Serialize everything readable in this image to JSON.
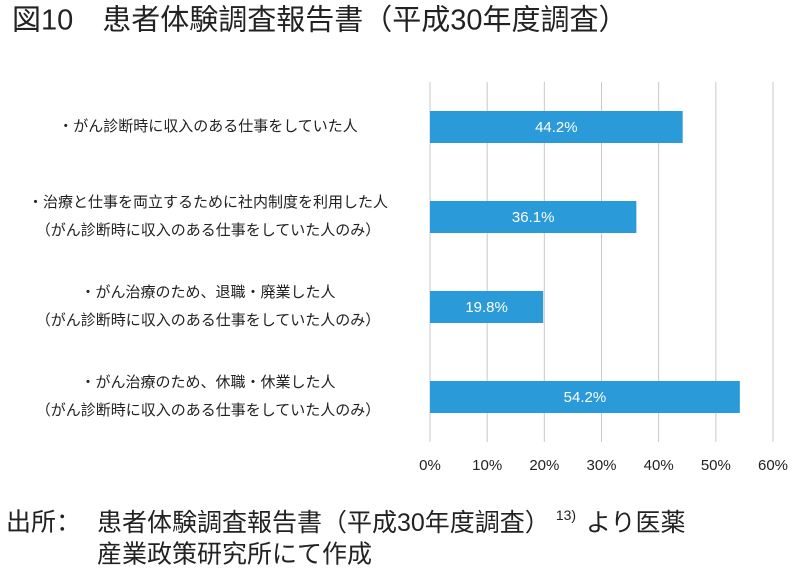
{
  "chart_data": {
    "type": "barh",
    "title": "図10　患者体験調査報告書（平成30年度調査）",
    "categories": [
      [
        "・がん診断時に収入のある仕事をしていた人"
      ],
      [
        "・治療と仕事を両立するために社内制度を利用した人",
        "（がん診断時に収入のある仕事をしていた人のみ）"
      ],
      [
        "・がん治療のため、退職・廃業した人",
        "（がん診断時に収入のある仕事をしていた人のみ）"
      ],
      [
        "・がん治療のため、休職・休業した人",
        "（がん診断時に収入のある仕事をしていた人のみ）"
      ]
    ],
    "values": [
      44.2,
      36.1,
      19.8,
      54.2
    ],
    "value_labels": [
      "44.2%",
      "36.1%",
      "19.8%",
      "54.2%"
    ],
    "color": "#2a9ad8",
    "xlim": [
      0,
      60
    ],
    "xticks": [
      {
        "value": 0,
        "label": "0%"
      },
      {
        "value": 10,
        "label": "10%"
      },
      {
        "value": 20,
        "label": "20%"
      },
      {
        "value": 30,
        "label": "30%"
      },
      {
        "value": 40,
        "label": "40%"
      },
      {
        "value": 50,
        "label": "50%"
      },
      {
        "value": 60,
        "label": "60%"
      }
    ],
    "grid": true,
    "source_label": "出所：",
    "source_line1a": "患者体験調査報告書（平成30年度調査）",
    "source_ref": "13)",
    "source_line1b": "より医薬",
    "source_line2": "産業政策研究所にて作成"
  }
}
